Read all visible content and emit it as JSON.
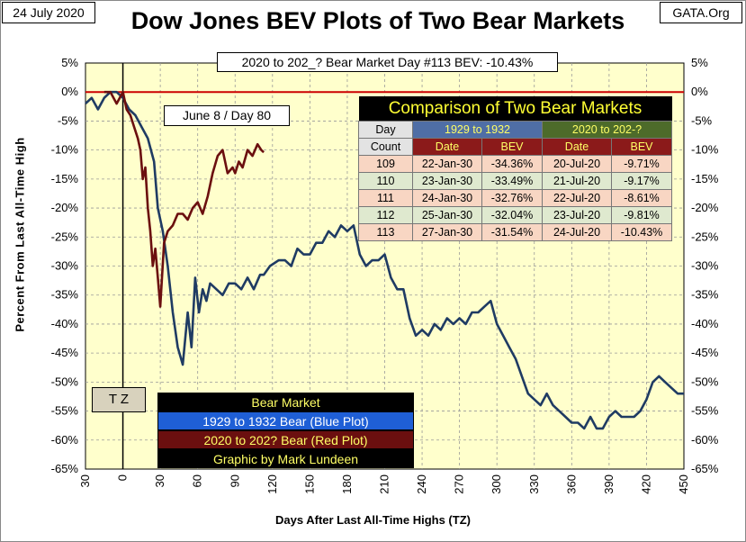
{
  "header": {
    "date": "24 July 2020",
    "title": "Dow Jones BEV Plots of Two Bear Markets",
    "source": "GATA.Org"
  },
  "status_box": "2020 to 202_? Bear Market Day #113 BEV: -10.43%",
  "annotation": "June 8 / Day 80",
  "tz_label": "T Z",
  "colors": {
    "plot_bg": "#ffffcc",
    "blue_series": "#1f3b63",
    "red_series": "#6b0f0f",
    "zero_line": "#cc0000",
    "table_title_bg": "#000000",
    "table_title_fg": "#ffff33"
  },
  "comparison_table": {
    "title": "Comparison of Two Bear Markets",
    "group1": "1929 to 1932",
    "group2": "2020 to 202-?",
    "day_header_1": "Day",
    "day_header_2": "Count",
    "col_date": "Date",
    "col_bev": "BEV",
    "rows": [
      {
        "day": "109",
        "d1": "22-Jan-30",
        "b1": "-34.36%",
        "d2": "20-Jul-20",
        "b2": "-9.71%"
      },
      {
        "day": "110",
        "d1": "23-Jan-30",
        "b1": "-33.49%",
        "d2": "21-Jul-20",
        "b2": "-9.17%"
      },
      {
        "day": "111",
        "d1": "24-Jan-30",
        "b1": "-32.76%",
        "d2": "22-Jul-20",
        "b2": "-8.61%"
      },
      {
        "day": "112",
        "d1": "25-Jan-30",
        "b1": "-32.04%",
        "d2": "23-Jul-20",
        "b2": "-9.81%"
      },
      {
        "day": "113",
        "d1": "27-Jan-30",
        "b1": "-31.54%",
        "d2": "24-Jul-20",
        "b2": "-10.43%"
      }
    ]
  },
  "legend": {
    "title": "Bear Market",
    "blue": "1929 to 1932 Bear (Blue Plot)",
    "red": "2020 to 202? Bear (Red Plot)",
    "credit": "Graphic by Mark Lundeen"
  },
  "chart_data": {
    "type": "line",
    "title": "Dow Jones BEV Plots of Two Bear Markets",
    "xlabel": "Days After Last All-Time Highs (TZ)",
    "ylabel": "Percent  From  Last  All-Time  High",
    "xlim": [
      -30,
      450
    ],
    "ylim": [
      -65,
      5
    ],
    "x_ticks": [
      -30,
      0,
      30,
      60,
      90,
      120,
      150,
      180,
      210,
      240,
      270,
      300,
      330,
      360,
      390,
      420,
      450
    ],
    "x_tick_labels": [
      "30",
      "0",
      "30",
      "60",
      "90",
      "120",
      "150",
      "180",
      "210",
      "240",
      "270",
      "300",
      "330",
      "360",
      "390",
      "420",
      "450"
    ],
    "y_ticks": [
      5,
      0,
      -5,
      -10,
      -15,
      -20,
      -25,
      -30,
      -35,
      -40,
      -45,
      -50,
      -55,
      -60,
      -65
    ],
    "y_tick_labels": [
      "5%",
      "0%",
      "-5%",
      "-10%",
      "-15%",
      "-20%",
      "-25%",
      "-30%",
      "-35%",
      "-40%",
      "-45%",
      "-50%",
      "-55%",
      "-60%",
      "-65%"
    ],
    "series": [
      {
        "name": "1929 to 1932 Bear (Blue Plot)",
        "x": [
          -30,
          -25,
          -20,
          -15,
          -10,
          -5,
          0,
          5,
          10,
          15,
          20,
          25,
          28,
          32,
          36,
          40,
          44,
          48,
          52,
          55,
          58,
          61,
          64,
          67,
          70,
          75,
          80,
          85,
          90,
          95,
          100,
          105,
          110,
          113,
          118,
          125,
          130,
          135,
          140,
          145,
          150,
          155,
          160,
          165,
          170,
          175,
          180,
          185,
          190,
          195,
          200,
          205,
          210,
          215,
          220,
          225,
          230,
          235,
          240,
          245,
          250,
          255,
          260,
          265,
          270,
          275,
          280,
          285,
          290,
          295,
          300,
          305,
          310,
          315,
          320,
          325,
          330,
          335,
          340,
          345,
          350,
          355,
          360,
          365,
          370,
          375,
          380,
          385,
          390,
          395,
          400,
          405,
          410,
          415,
          420,
          425,
          430,
          435,
          440,
          445,
          450
        ],
        "y": [
          -2,
          -1,
          -3,
          -1,
          0,
          0,
          -1,
          -3,
          -4,
          -6,
          -8,
          -12,
          -20,
          -24,
          -30,
          -38,
          -44,
          -47,
          -38,
          -44,
          -32,
          -38,
          -34,
          -36,
          -33,
          -34,
          -35,
          -33,
          -33,
          -34,
          -32,
          -34,
          -31.5,
          -31.5,
          -30,
          -29,
          -29,
          -30,
          -27,
          -28,
          -28,
          -26,
          -26,
          -24,
          -25,
          -23,
          -24,
          -23,
          -28,
          -30,
          -29,
          -29,
          -28,
          -32,
          -34,
          -34,
          -39,
          -42,
          -41,
          -42,
          -40,
          -41,
          -39,
          -40,
          -39,
          -40,
          -38,
          -38,
          -37,
          -36,
          -40,
          -42,
          -44,
          -46,
          -49,
          -52,
          -53,
          -54,
          -52,
          -54,
          -55,
          -56,
          -57,
          -57,
          -58,
          -56,
          -58,
          -58,
          -56,
          -55,
          -56,
          -56,
          -56,
          -55,
          -53,
          -50,
          -49,
          -50,
          -51,
          -52,
          -52
        ]
      },
      {
        "name": "2020 to 202? Bear (Red Plot)",
        "x": [
          -15,
          -10,
          -5,
          0,
          3,
          6,
          9,
          12,
          14,
          16,
          18,
          20,
          22,
          24,
          26,
          28,
          30,
          33,
          36,
          40,
          44,
          48,
          52,
          56,
          60,
          64,
          68,
          72,
          76,
          80,
          84,
          88,
          90,
          93,
          96,
          100,
          104,
          108,
          111,
          113
        ],
        "y": [
          0,
          0,
          -2,
          0,
          -3,
          -4,
          -6,
          -8,
          -10,
          -15,
          -13,
          -20,
          -24,
          -30,
          -27,
          -32,
          -37,
          -26,
          -24,
          -23,
          -21,
          -21,
          -22,
          -20,
          -19,
          -21,
          -18,
          -14,
          -11,
          -10,
          -14,
          -13,
          -14,
          -12,
          -13,
          -10,
          -11,
          -9,
          -10,
          -10.4
        ]
      }
    ]
  }
}
